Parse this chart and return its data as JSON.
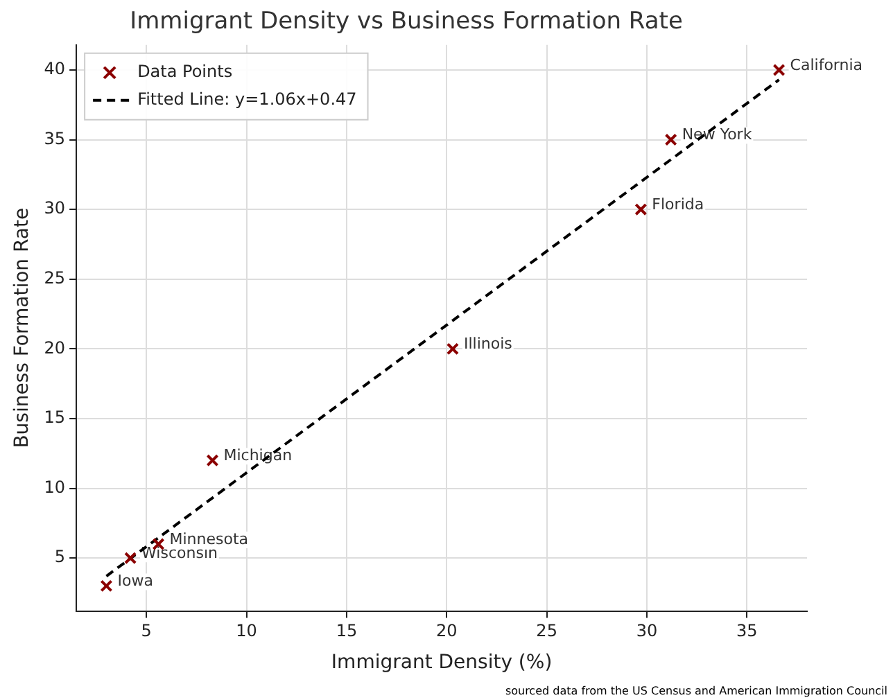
{
  "chart_data": {
    "type": "scatter",
    "title": "Immigrant Density vs Business Formation Rate",
    "xlabel": "Immigrant Density (%)",
    "ylabel": "Business Formation Rate",
    "xlim": [
      1.5,
      38
    ],
    "ylim": [
      1.2,
      41.8
    ],
    "xticks": [
      5,
      10,
      15,
      20,
      25,
      30,
      35
    ],
    "yticks": [
      5,
      10,
      15,
      20,
      25,
      30,
      35,
      40
    ],
    "grid": true,
    "legend": "top left",
    "series": [
      {
        "name": "Data Points",
        "type": "scatter",
        "color": "#8b0000",
        "marker": "cross",
        "x": [
          3,
          4.2,
          5.6,
          8.3,
          20.3,
          29.7,
          31.2,
          36.6
        ],
        "values": [
          3,
          5,
          6,
          12,
          20,
          30,
          35,
          40
        ]
      },
      {
        "name": "Fitted Line: y=1.06x+0.47",
        "type": "line",
        "color": "#000000",
        "marker": "none",
        "line_style": "dashed",
        "x": [
          3,
          36.6
        ],
        "values": [
          3.7,
          39.3
        ]
      }
    ],
    "annotations": [
      {
        "text": "Iowa",
        "x": 3,
        "y": 3
      },
      {
        "text": "Wisconsin",
        "x": 4.2,
        "y": 5
      },
      {
        "text": "Minnesota",
        "x": 5.6,
        "y": 6
      },
      {
        "text": "Michigan",
        "x": 8.3,
        "y": 12
      },
      {
        "text": "Illinois",
        "x": 20.3,
        "y": 20
      },
      {
        "text": "Florida",
        "x": 29.7,
        "y": 30
      },
      {
        "text": "New York",
        "x": 31.2,
        "y": 35
      },
      {
        "text": "California",
        "x": 36.6,
        "y": 40
      },
      "sourced data from the US Census and American Immigration Council"
    ]
  }
}
